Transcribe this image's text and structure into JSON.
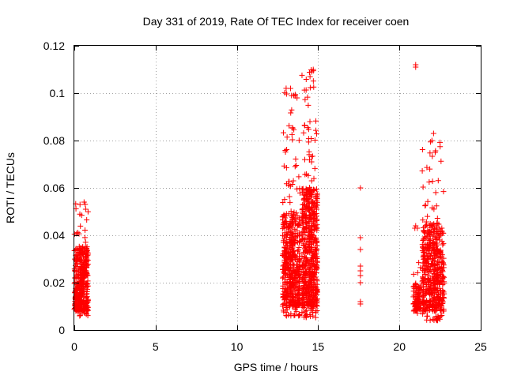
{
  "chart_data": {
    "type": "scatter",
    "title": "Day 331 of 2019, Rate Of TEC Index for receiver coen",
    "xlabel": "GPS time / hours",
    "ylabel": "ROTI / TECUs",
    "xlim": [
      0,
      25
    ],
    "ylim": [
      0,
      0.12
    ],
    "xticks": [
      0,
      5,
      10,
      15,
      20,
      25
    ],
    "xtick_labels": [
      "0",
      "5",
      "10",
      "15",
      "20",
      "25"
    ],
    "yticks": [
      0,
      0.02,
      0.04,
      0.06,
      0.08,
      0.1,
      0.12
    ],
    "ytick_labels": [
      "0",
      "0.02",
      "0.04",
      "0.06",
      "0.08",
      "0.1",
      "0.12"
    ],
    "grid": true,
    "marker": "+",
    "color": "#ff0000",
    "clusters": [
      {
        "x_range": [
          0.0,
          0.85
        ],
        "y_range": [
          0.006,
          0.055
        ],
        "y_dense": [
          0.008,
          0.035
        ],
        "count": 420
      },
      {
        "x_range": [
          12.8,
          13.9
        ],
        "y_range": [
          0.006,
          0.103
        ],
        "y_dense": [
          0.01,
          0.05
        ],
        "count": 520
      },
      {
        "x_range": [
          14.0,
          14.95
        ],
        "y_range": [
          0.005,
          0.11
        ],
        "y_dense": [
          0.01,
          0.06
        ],
        "count": 600
      },
      {
        "x_range": [
          20.85,
          21.35
        ],
        "y_range": [
          0.007,
          0.03
        ],
        "y_dense": [
          0.008,
          0.02
        ],
        "count": 90
      },
      {
        "x_range": [
          21.4,
          22.75
        ],
        "y_range": [
          0.004,
          0.083
        ],
        "y_dense": [
          0.008,
          0.045
        ],
        "count": 520
      }
    ],
    "points": [
      {
        "x": 17.6,
        "y": 0.06
      },
      {
        "x": 17.6,
        "y": 0.039
      },
      {
        "x": 17.6,
        "y": 0.034
      },
      {
        "x": 17.6,
        "y": 0.027
      },
      {
        "x": 17.6,
        "y": 0.025
      },
      {
        "x": 17.6,
        "y": 0.023
      },
      {
        "x": 17.6,
        "y": 0.02
      },
      {
        "x": 17.6,
        "y": 0.012
      },
      {
        "x": 17.6,
        "y": 0.011
      },
      {
        "x": 21.0,
        "y": 0.112
      },
      {
        "x": 21.0,
        "y": 0.111
      },
      {
        "x": 21.0,
        "y": 0.044
      },
      {
        "x": 21.1,
        "y": 0.043
      },
      {
        "x": 20.95,
        "y": 0.043
      },
      {
        "x": 13.3,
        "y": 0.102
      },
      {
        "x": 13.5,
        "y": 0.099
      },
      {
        "x": 14.6,
        "y": 0.109
      },
      {
        "x": 14.5,
        "y": 0.107
      },
      {
        "x": 14.7,
        "y": 0.11
      },
      {
        "x": 13.7,
        "y": 0.098
      },
      {
        "x": 22.1,
        "y": 0.083
      },
      {
        "x": 22.0,
        "y": 0.08
      },
      {
        "x": 22.2,
        "y": 0.075
      },
      {
        "x": 0.35,
        "y": 0.053
      },
      {
        "x": 0.6,
        "y": 0.054
      },
      {
        "x": 0.7,
        "y": 0.051
      }
    ]
  }
}
